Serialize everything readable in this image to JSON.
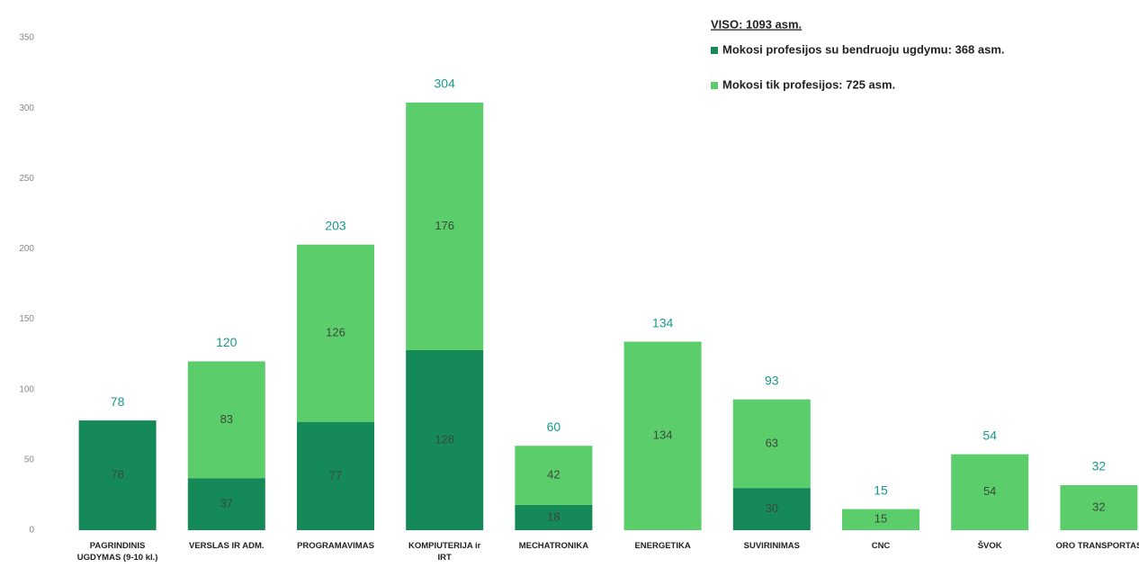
{
  "chart_data": {
    "type": "stacked_bar",
    "legend_title": "VISO: 1093 asm.",
    "categories": [
      "PAGRINDINIS UGDYMAS (9-10 kl.)",
      "VERSLAS IR ADM.",
      "PROGRAMAVIMAS",
      "KOMPIUTERIJA ir IRT",
      "MECHATRONIKA",
      "ENERGETIKA",
      "SUVIRINIMAS",
      "CNC",
      "ŠVOK",
      "ORO TRANSPORTAS"
    ],
    "series": [
      {
        "name": "Mokosi profesijos su bendruoju ugdymu: 368 asm.",
        "color": "#158a58",
        "values": [
          78,
          37,
          77,
          128,
          18,
          null,
          30,
          null,
          null,
          null
        ]
      },
      {
        "name": "Mokosi tik profesijos: 725 asm.",
        "color": "#5ccd6b",
        "values": [
          null,
          83,
          126,
          176,
          42,
          134,
          63,
          15,
          54,
          32
        ]
      }
    ],
    "totals": [
      78,
      120,
      203,
      304,
      60,
      134,
      93,
      15,
      54,
      32
    ],
    "ylim": [
      0,
      350
    ],
    "yticks": [
      0,
      50,
      100,
      150,
      200,
      250,
      300,
      350
    ],
    "grid": false,
    "legend": "top-right"
  }
}
